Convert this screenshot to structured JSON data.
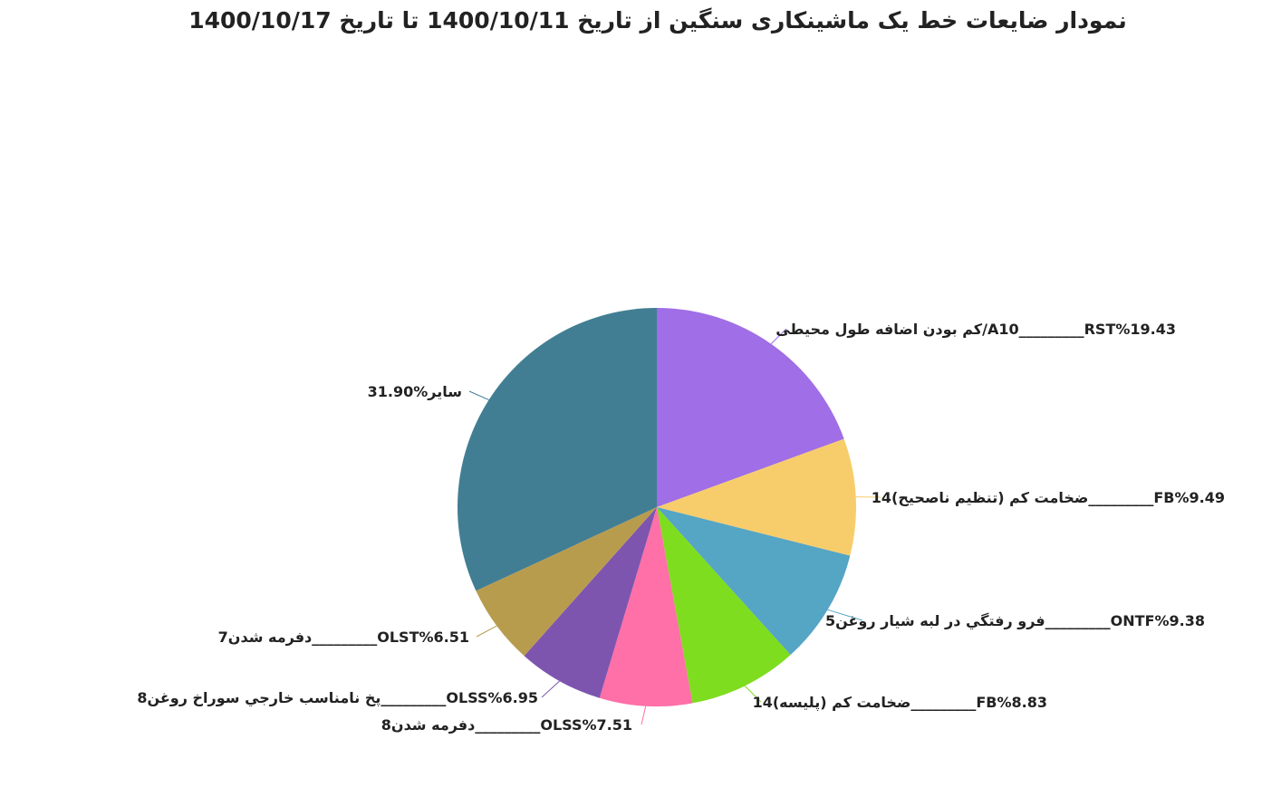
{
  "chart_data": {
    "type": "pie",
    "title": "نمودار ضایعات خط یک ماشینکاری سنگین از تاریخ 1400/10/11 تا تاریخ 1400/10/17",
    "slices": [
      {
        "label": "کم بودن اضافه طول محیطی/A10_________RST%19.43",
        "value": 19.43,
        "color": "#A06EE6"
      },
      {
        "label": "ضخامت کم (تنظیم ناصحیح)14_________FB%9.49",
        "value": 9.49,
        "color": "#F7CD6C"
      },
      {
        "label": "فرو رفتگي در لبه شيار روغن5_________ONTF%9.38",
        "value": 9.38,
        "color": "#55A5C5"
      },
      {
        "label": "ضخامت کم (پلیسه)14_________FB%8.83",
        "value": 8.83,
        "color": "#7EDD1E"
      },
      {
        "label": "دفرمه شدن8_________OLSS%7.51",
        "value": 7.51,
        "color": "#FF6FA8"
      },
      {
        "label": "پخ نامناسب خارجي سوراخ روغن8_________OLSS%6.95",
        "value": 6.95,
        "color": "#7D55AE"
      },
      {
        "label": "دفرمه شدن7_________OLST%6.51",
        "value": 6.51,
        "color": "#B89C4E"
      },
      {
        "label": "سایر%31.90",
        "value": 31.9,
        "color": "#427E93"
      }
    ]
  }
}
